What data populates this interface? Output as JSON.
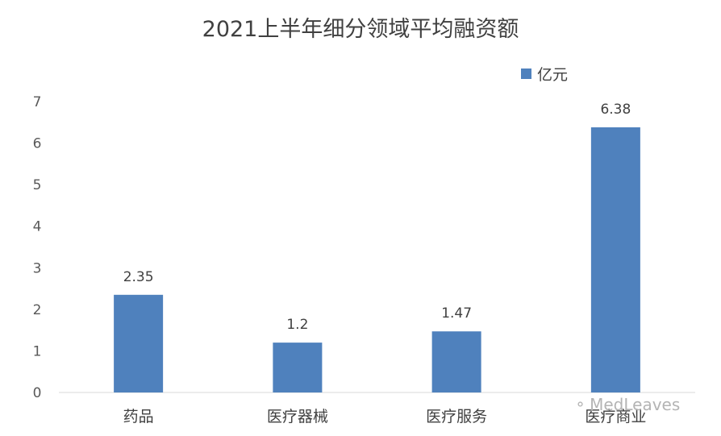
{
  "chart_data": {
    "type": "bar",
    "title": "2021上半年细分领域平均融资额",
    "categories": [
      "药品",
      "医疗器械",
      "医疗服务",
      "医疗商业"
    ],
    "series": [
      {
        "name": "亿元",
        "values": [
          2.35,
          1.2,
          1.47,
          6.38
        ],
        "color": "#4f81bd"
      }
    ],
    "data_labels": [
      "2.35",
      "1.2",
      "1.47",
      "6.38"
    ],
    "yticks": [
      0,
      1,
      2,
      3,
      4,
      5,
      6,
      7
    ],
    "ylim": [
      0,
      7
    ],
    "xlabel": "",
    "ylabel": "",
    "grid": false,
    "legend_position": "top-right"
  },
  "watermark": {
    "text": "MedLeaves",
    "icon": "wechat-icon"
  }
}
